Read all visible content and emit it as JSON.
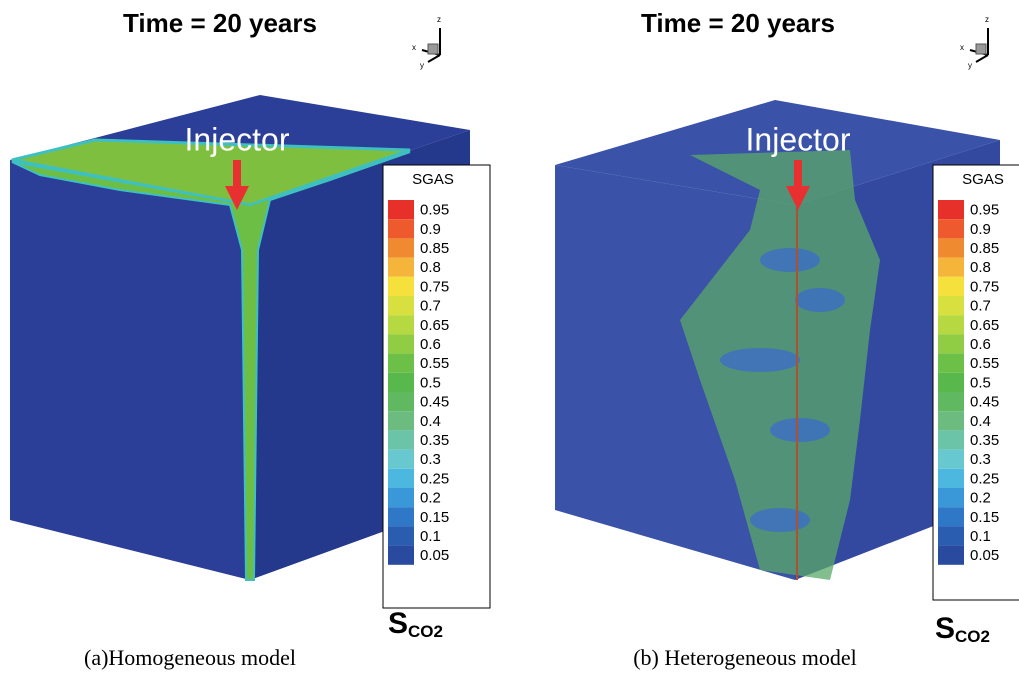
{
  "panels": [
    {
      "title": "Time = 20 years",
      "axes": [
        "z",
        "x",
        "y"
      ],
      "annotation": "Injector",
      "legend": {
        "title": "SGAS",
        "labels": [
          "0.95",
          "0.9",
          "0.85",
          "0.8",
          "0.75",
          "0.7",
          "0.65",
          "0.6",
          "0.55",
          "0.5",
          "0.45",
          "0.4",
          "0.35",
          "0.3",
          "0.25",
          "0.2",
          "0.15",
          "0.1",
          "0.05"
        ],
        "colors": [
          "#e8302a",
          "#ee5a2d",
          "#f08a30",
          "#f5b43a",
          "#f6e03c",
          "#d8e040",
          "#b6d840",
          "#90cc44",
          "#6cc048",
          "#58b84c",
          "#60b860",
          "#6cbc80",
          "#6cc4a8",
          "#68c8d0",
          "#4cb8e0",
          "#3a98d8",
          "#2f78c8",
          "#2a5cb0",
          "#2a4aa0"
        ]
      },
      "variable": {
        "base": "S",
        "subscript": "CO2"
      },
      "caption": "(a)Homogeneous model"
    },
    {
      "title": "Time = 20 years",
      "axes": [
        "z",
        "x",
        "y"
      ],
      "annotation": "Injector",
      "legend": {
        "title": "SGAS",
        "labels": [
          "0.95",
          "0.9",
          "0.85",
          "0.8",
          "0.75",
          "0.7",
          "0.65",
          "0.6",
          "0.55",
          "0.5",
          "0.45",
          "0.4",
          "0.35",
          "0.3",
          "0.25",
          "0.2",
          "0.15",
          "0.1",
          "0.05"
        ],
        "colors": [
          "#e8302a",
          "#ee5a2d",
          "#f08a30",
          "#f5b43a",
          "#f6e03c",
          "#d8e040",
          "#b6d840",
          "#90cc44",
          "#6cc048",
          "#58b84c",
          "#60b860",
          "#6cbc80",
          "#6cc4a8",
          "#68c8d0",
          "#4cb8e0",
          "#3a98d8",
          "#2f78c8",
          "#2a5cb0",
          "#2a4aa0"
        ]
      },
      "variable": {
        "base": "S",
        "subscript": "CO2"
      },
      "caption": "(b) Heterogeneous model"
    }
  ]
}
